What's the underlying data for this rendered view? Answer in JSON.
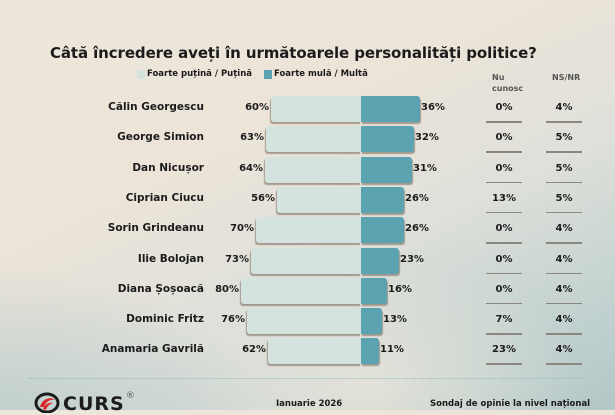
{
  "title": "Câtă încredere aveți în următoarele personalități politice?",
  "legend": [
    {
      "label": "Foarte puțină / Puțină",
      "color": "#d5e3de"
    },
    {
      "label": "Foarte mulă / Multă",
      "color": "#5ba3b0"
    }
  ],
  "columns": {
    "nu_cunosc": "Nu cunosc",
    "nu_cunosc_line1": "Nu",
    "nu_cunosc_line2": "cunosc",
    "ns_nr": "NS/NR"
  },
  "rows": [
    {
      "name": "Călin Georgescu",
      "low": "60%",
      "high": "36%",
      "nu_cunosc": "0%",
      "ns_nr": "4%"
    },
    {
      "name": "George Simion",
      "low": "63%",
      "high": "32%",
      "nu_cunosc": "0%",
      "ns_nr": "5%"
    },
    {
      "name": "Dan Nicușor",
      "low": "64%",
      "high": "31%",
      "nu_cunosc": "0%",
      "ns_nr": "5%"
    },
    {
      "name": "Ciprian Ciucu",
      "low": "56%",
      "high": "26%",
      "nu_cunosc": "13%",
      "ns_nr": "5%"
    },
    {
      "name": "Sorin Grindeanu",
      "low": "70%",
      "high": "26%",
      "nu_cunosc": "0%",
      "ns_nr": "4%"
    },
    {
      "name": "Ilie Bolojan",
      "low": "73%",
      "high": "23%",
      "nu_cunosc": "0%",
      "ns_nr": "4%"
    },
    {
      "name": "Diana Șoșoacă",
      "low": "80%",
      "high": "16%",
      "nu_cunosc": "0%",
      "ns_nr": "4%"
    },
    {
      "name": "Dominic Fritz",
      "low": "76%",
      "high": "13%",
      "nu_cunosc": "7%",
      "ns_nr": "4%"
    },
    {
      "name": "Anamaria Gavrilă",
      "low": "62%",
      "high": "11%",
      "nu_cunosc": "23%",
      "ns_nr": "4%"
    }
  ],
  "footer": {
    "logo": "CURS",
    "logo_mark": "®",
    "date": "Ianuarie 2026",
    "source": "Sondaj de opinie la nivel național"
  },
  "chart_data": {
    "type": "bar",
    "orientation": "horizontal-diverging",
    "title": "Câtă încredere aveți în următoarele personalități politice?",
    "categories": [
      "Călin Georgescu",
      "George Simion",
      "Dan Nicușor",
      "Ciprian Ciucu",
      "Sorin Grindeanu",
      "Ilie Bolojan",
      "Diana Șoșoacă",
      "Dominic Fritz",
      "Anamaria Gavrilă"
    ],
    "series": [
      {
        "name": "Foarte puțină / Puțină",
        "color": "#d5e3de",
        "values": [
          60,
          63,
          64,
          56,
          70,
          73,
          80,
          76,
          62
        ]
      },
      {
        "name": "Foarte mulă / Multă",
        "color": "#5ba3b0",
        "values": [
          36,
          32,
          31,
          26,
          26,
          23,
          16,
          13,
          11
        ]
      },
      {
        "name": "Nu cunosc",
        "values": [
          0,
          0,
          0,
          13,
          0,
          0,
          0,
          7,
          23
        ]
      },
      {
        "name": "NS/NR",
        "values": [
          4,
          5,
          5,
          5,
          4,
          4,
          4,
          4,
          4
        ]
      }
    ],
    "unit": "%",
    "legend_position": "top",
    "grid": false
  }
}
